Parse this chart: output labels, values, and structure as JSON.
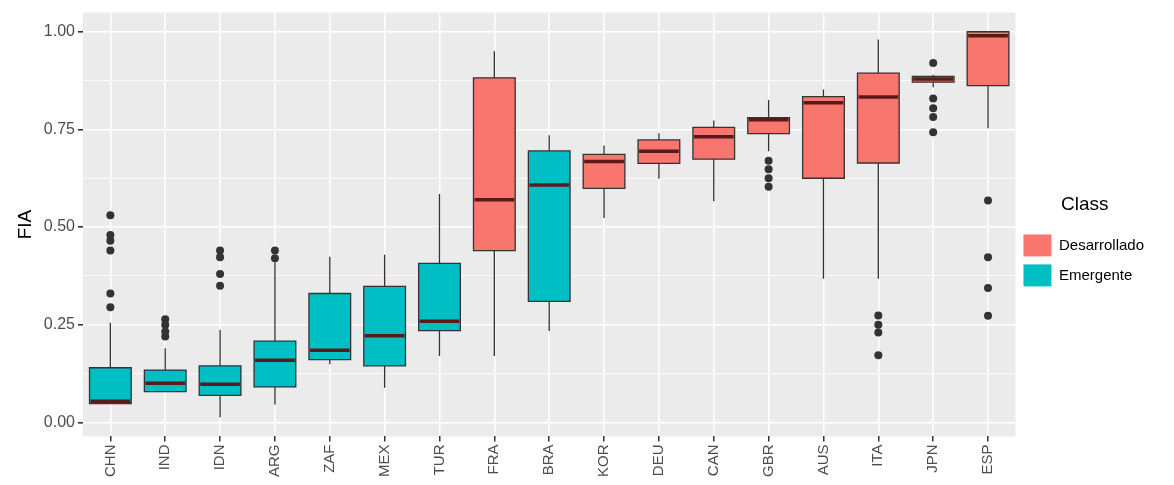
{
  "chart_data": {
    "type": "box",
    "ylabel": "FIA",
    "legend_title": "Class",
    "legend": "right",
    "grid": true,
    "categories": [
      "CHN",
      "IND",
      "IDN",
      "ARG",
      "ZAF",
      "MEX",
      "TUR",
      "FRA",
      "BRA",
      "KOR",
      "DEU",
      "CAN",
      "GBR",
      "AUS",
      "ITA",
      "JPN",
      "ESP"
    ],
    "ylim": [
      -0.036,
      1.049
    ],
    "yticks": [
      {
        "value": 0,
        "label": "0.00"
      },
      {
        "value": 0.125,
        "label": null
      },
      {
        "value": 0.25,
        "label": "0.25"
      },
      {
        "value": 0.375,
        "label": null
      },
      {
        "value": 0.5,
        "label": "0.50"
      },
      {
        "value": 0.625,
        "label": null
      },
      {
        "value": 0.75,
        "label": "0.75"
      },
      {
        "value": 0.875,
        "label": null
      },
      {
        "value": 1,
        "label": "1.00"
      }
    ],
    "series": [
      {
        "name": "Desarrollado",
        "color": "#f8766d",
        "boxes": [
          null,
          null,
          null,
          null,
          null,
          null,
          null,
          {
            "low": 0.17,
            "q1": 0.44,
            "median": 0.57,
            "q3": 0.882,
            "high": 0.95
          },
          null,
          {
            "low": 0.523,
            "q1": 0.599,
            "median": 0.668,
            "q3": 0.686,
            "high": 0.709
          },
          {
            "low": 0.624,
            "q1": 0.663,
            "median": 0.694,
            "q3": 0.723,
            "high": 0.74
          },
          {
            "low": 0.566,
            "q1": 0.674,
            "median": 0.731,
            "q3": 0.755,
            "high": 0.773
          },
          {
            "low": 0.694,
            "q1": 0.739,
            "median": 0.775,
            "q3": 0.78,
            "high": 0.825,
            "outliers": [
              0.67,
              0.648,
              0.625,
              0.603
            ]
          },
          {
            "low": 0.368,
            "q1": 0.625,
            "median": 0.818,
            "q3": 0.834,
            "high": 0.852
          },
          {
            "low": 0.368,
            "q1": 0.664,
            "median": 0.833,
            "q3": 0.894,
            "high": 0.98,
            "outliers": [
              0.274,
              0.25,
              0.23,
              0.172
            ]
          },
          {
            "low": 0.858,
            "q1": 0.871,
            "median": 0.879,
            "q3": 0.886,
            "high": 0.89,
            "outliers": [
              0.92,
              0.829,
              0.804,
              0.782,
              0.743
            ]
          },
          {
            "low": 0.753,
            "q1": 0.862,
            "median": 0.99,
            "q3": 1.0,
            "high": 1.0,
            "outliers": [
              0.568,
              0.423,
              0.344,
              0.273
            ]
          }
        ]
      },
      {
        "name": "Emergente",
        "color": "#00bfc4",
        "boxes": [
          {
            "low": 0.048,
            "q1": 0.048,
            "median": 0.054,
            "q3": 0.14,
            "high": 0.255,
            "outliers": [
              0.53,
              0.48,
              0.465,
              0.44,
              0.33,
              0.295
            ]
          },
          {
            "low": 0.079,
            "q1": 0.079,
            "median": 0.1,
            "q3": 0.134,
            "high": 0.19,
            "outliers": [
              0.264,
              0.25,
              0.233,
              0.22
            ]
          },
          {
            "low": 0.013,
            "q1": 0.069,
            "median": 0.098,
            "q3": 0.145,
            "high": 0.237,
            "outliers": [
              0.44,
              0.423,
              0.38,
              0.35
            ]
          },
          {
            "low": 0.046,
            "q1": 0.091,
            "median": 0.159,
            "q3": 0.208,
            "high": 0.41,
            "outliers": [
              0.44,
              0.42
            ]
          },
          {
            "low": 0.149,
            "q1": 0.161,
            "median": 0.185,
            "q3": 0.33,
            "high": 0.424
          },
          {
            "low": 0.089,
            "q1": 0.145,
            "median": 0.222,
            "q3": 0.348,
            "high": 0.429
          },
          {
            "low": 0.17,
            "q1": 0.235,
            "median": 0.259,
            "q3": 0.407,
            "high": 0.585
          },
          null,
          {
            "low": 0.234,
            "q1": 0.31,
            "median": 0.608,
            "q3": 0.695,
            "high": 0.735
          },
          null,
          null,
          null,
          null,
          null,
          null,
          null,
          null
        ]
      }
    ]
  }
}
